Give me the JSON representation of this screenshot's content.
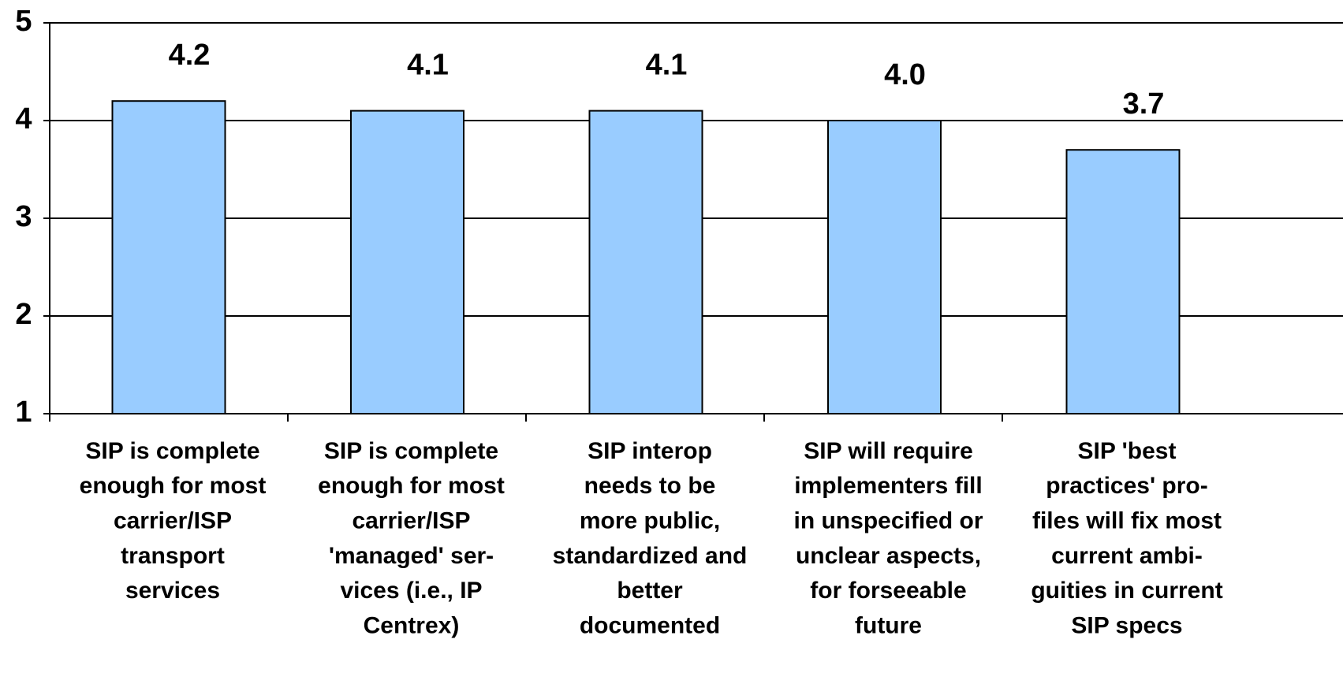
{
  "chart_data": {
    "type": "bar",
    "categories": [
      [
        "SIP is complete",
        "enough for most",
        "carrier/ISP",
        "transport",
        "services"
      ],
      [
        "SIP is complete",
        "enough for most",
        "carrier/ISP",
        "'managed' ser-",
        "vices (i.e., IP",
        "Centrex)"
      ],
      [
        "SIP interop",
        "needs to be",
        "more public,",
        "standardized and",
        "better",
        "documented"
      ],
      [
        "SIP will require",
        "implementers fill",
        "in unspecified or",
        "unclear aspects,",
        "for forseeable",
        "future"
      ],
      [
        "SIP 'best",
        "practices' pro-",
        "files will fix most",
        "current ambi-",
        "guities in current",
        "SIP specs"
      ]
    ],
    "values": [
      4.2,
      4.1,
      4.1,
      4.0,
      3.7
    ],
    "value_labels": [
      "4.2",
      "4.1",
      "4.1",
      "4.0",
      "3.7"
    ],
    "color": "#99ccff",
    "ylim": [
      1,
      5
    ],
    "yticks": [
      1,
      2,
      3,
      4,
      5
    ],
    "grid": true
  }
}
